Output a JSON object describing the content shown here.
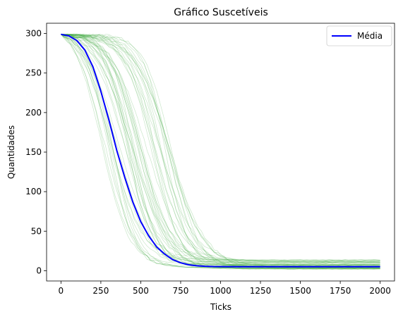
{
  "chart_data": {
    "type": "line",
    "title": "Gráfico Suscetíveis",
    "xlabel": "Ticks",
    "ylabel": "Quantidades",
    "xlim": [
      -90,
      2090
    ],
    "ylim": [
      -13,
      313
    ],
    "xticks": [
      0,
      250,
      500,
      750,
      1000,
      1250,
      1500,
      1750,
      2000
    ],
    "yticks": [
      0,
      50,
      100,
      150,
      200,
      250,
      300
    ],
    "grid": false,
    "legend_position": "top-right",
    "mean_series": {
      "name": "Média",
      "color": "#0000ff",
      "x": [
        0,
        50,
        100,
        150,
        200,
        250,
        300,
        350,
        400,
        450,
        500,
        550,
        600,
        650,
        700,
        750,
        800,
        850,
        900,
        950,
        1000,
        1100,
        1200,
        1400,
        1600,
        1800,
        2000
      ],
      "y": [
        299,
        297,
        291,
        279,
        258,
        227,
        191,
        152,
        118,
        87,
        62,
        44,
        30,
        21,
        14,
        10,
        7.5,
        6.2,
        5.6,
        5.3,
        5.2,
        5.1,
        5,
        5,
        5,
        5,
        5
      ]
    },
    "runs": {
      "color": "#2ca02c",
      "count": 50,
      "note_midpoint_range": [
        250,
        700
      ],
      "plateau_range": [
        2,
        14
      ]
    }
  }
}
